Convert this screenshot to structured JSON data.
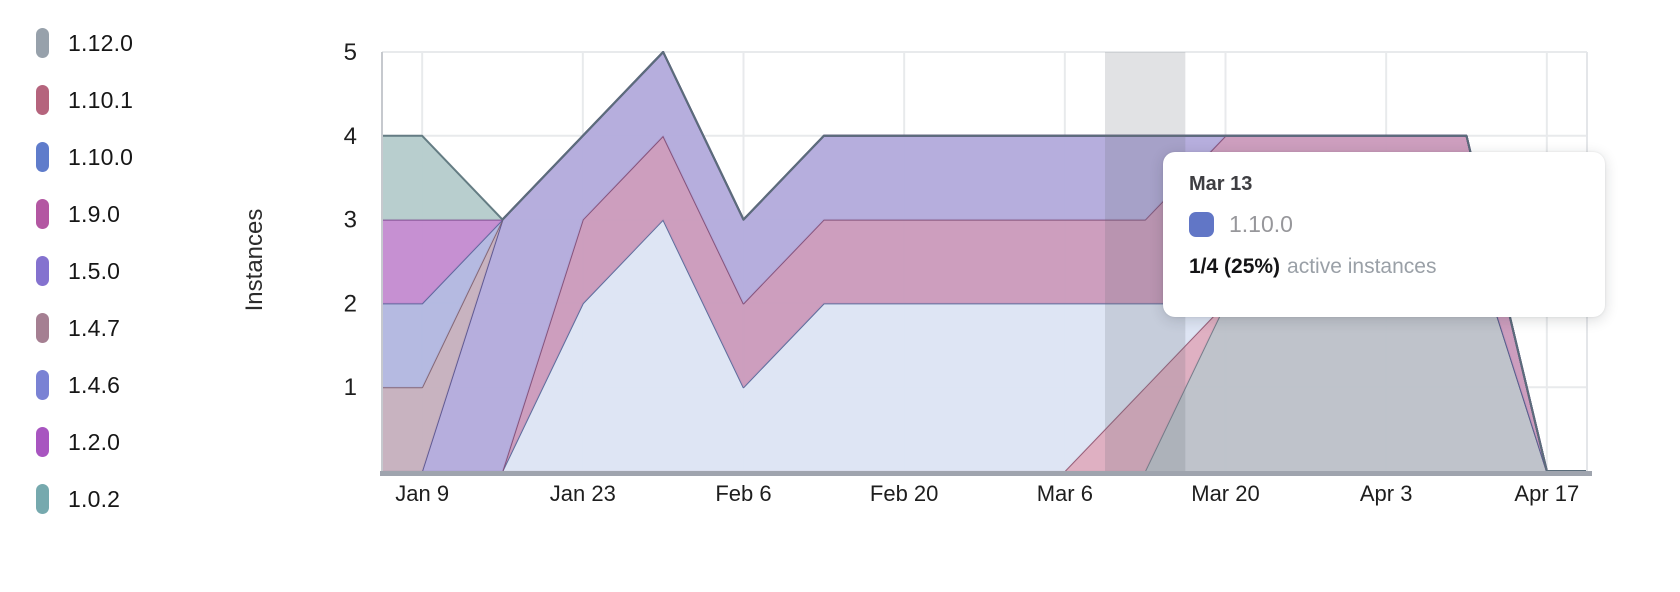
{
  "y_axis": {
    "title": "Instances",
    "ticks": [
      "1",
      "2",
      "3",
      "4",
      "5"
    ]
  },
  "x_axis": {
    "tick_labels": [
      "Jan 9",
      "Jan 23",
      "Feb 6",
      "Feb 20",
      "Mar 6",
      "Mar 20",
      "Apr 3",
      "Apr 17"
    ]
  },
  "legend": {
    "items": [
      {
        "label": "1.12.0",
        "color": "#97a1ab"
      },
      {
        "label": "1.10.1",
        "color": "#b5647d"
      },
      {
        "label": "1.10.0",
        "color": "#5f7ccb"
      },
      {
        "label": "1.9.0",
        "color": "#b357a2"
      },
      {
        "label": "1.5.0",
        "color": "#8472cf"
      },
      {
        "label": "1.4.7",
        "color": "#a57f92"
      },
      {
        "label": "1.4.6",
        "color": "#7a82d4"
      },
      {
        "label": "1.2.0",
        "color": "#a855c0"
      },
      {
        "label": "1.0.2",
        "color": "#76a9ae"
      }
    ]
  },
  "tooltip": {
    "date": "Mar 13",
    "series_label": "1.10.0",
    "series_color": "#6176c6",
    "value_text": "1/4 (25%)",
    "value_suffix": "active instances"
  },
  "chart_data": {
    "type": "area",
    "stacked": true,
    "title": "",
    "xlabel": "",
    "ylabel": "Instances",
    "ylim": [
      0,
      5
    ],
    "grid": true,
    "legend_position": "left",
    "x": [
      "Jan 9",
      "Jan 16",
      "Jan 23",
      "Jan 30",
      "Feb 6",
      "Feb 13",
      "Feb 20",
      "Feb 27",
      "Mar 6",
      "Mar 13",
      "Mar 20",
      "Mar 27",
      "Apr 3",
      "Apr 10",
      "Apr 17"
    ],
    "x_shown_ticks": [
      0,
      2,
      4,
      6,
      8,
      10,
      12,
      14
    ],
    "stack_order_note": "series listed bottom-to-top of stack; legend shows same order top-to-bottom",
    "series": [
      {
        "name": "1.12.0",
        "swatch": "#97a1ab",
        "fill": "#bcc1c9",
        "line": "#6e7684",
        "values": [
          0,
          0,
          0,
          0,
          0,
          0,
          0,
          0,
          0,
          0,
          2,
          2,
          3,
          3,
          0
        ]
      },
      {
        "name": "1.10.1",
        "swatch": "#b5647d",
        "fill": "#deadc0",
        "line": "#8f5570",
        "values": [
          0,
          0,
          0,
          0,
          0,
          0,
          0,
          0,
          0,
          1,
          0,
          0,
          0,
          0,
          0
        ]
      },
      {
        "name": "1.10.0",
        "swatch": "#5f7ccb",
        "fill": "#dde4f4",
        "line": "#4f5f94",
        "values": [
          0,
          0,
          2,
          3,
          1,
          2,
          2,
          2,
          2,
          1,
          0,
          0,
          0,
          0,
          0
        ]
      },
      {
        "name": "1.9.0",
        "swatch": "#b357a2",
        "fill": "#cb9abb",
        "line": "#7d4a74",
        "values": [
          0,
          0,
          1,
          1,
          1,
          1,
          1,
          1,
          1,
          1,
          2,
          2,
          1,
          1,
          0
        ]
      },
      {
        "name": "1.5.0",
        "swatch": "#8472cf",
        "fill": "#b3abdc",
        "line": "#56508a",
        "values": [
          0,
          3,
          1,
          1,
          1,
          1,
          1,
          1,
          1,
          1,
          0,
          0,
          0,
          0,
          0
        ]
      },
      {
        "name": "1.4.7",
        "swatch": "#a57f92",
        "fill": "#c6b0bd",
        "line": "#7c5e6e",
        "values": [
          1,
          0,
          0,
          0,
          0,
          0,
          0,
          0,
          0,
          0,
          0,
          0,
          0,
          0,
          0
        ]
      },
      {
        "name": "1.4.6",
        "swatch": "#7a82d4",
        "fill": "#b2b7e0",
        "line": "#555d96",
        "values": [
          1,
          0,
          0,
          0,
          0,
          0,
          0,
          0,
          0,
          0,
          0,
          0,
          0,
          0,
          0
        ]
      },
      {
        "name": "1.2.0",
        "swatch": "#a855c0",
        "fill": "#c48bd0",
        "line": "#7a4a8c",
        "values": [
          1,
          0,
          0,
          0,
          0,
          0,
          0,
          0,
          0,
          0,
          0,
          0,
          0,
          0,
          0
        ]
      },
      {
        "name": "1.0.2",
        "swatch": "#76a9ae",
        "fill": "#b5cccc",
        "line": "#587179",
        "values": [
          1,
          0,
          0,
          0,
          0,
          0,
          0,
          0,
          0,
          0,
          0,
          0,
          0,
          0,
          0
        ]
      }
    ],
    "highlight": {
      "index": 9,
      "label": "Mar 13",
      "color": "#6b7078",
      "opacity": 0.2
    },
    "colors": {
      "grid": "#e8eaec",
      "plot_left_border": "#c6c9ce",
      "plot_right_border": "#e4e6e9",
      "axis_line": "#9fa4ae",
      "tick_text": "#1e1e1e"
    }
  }
}
